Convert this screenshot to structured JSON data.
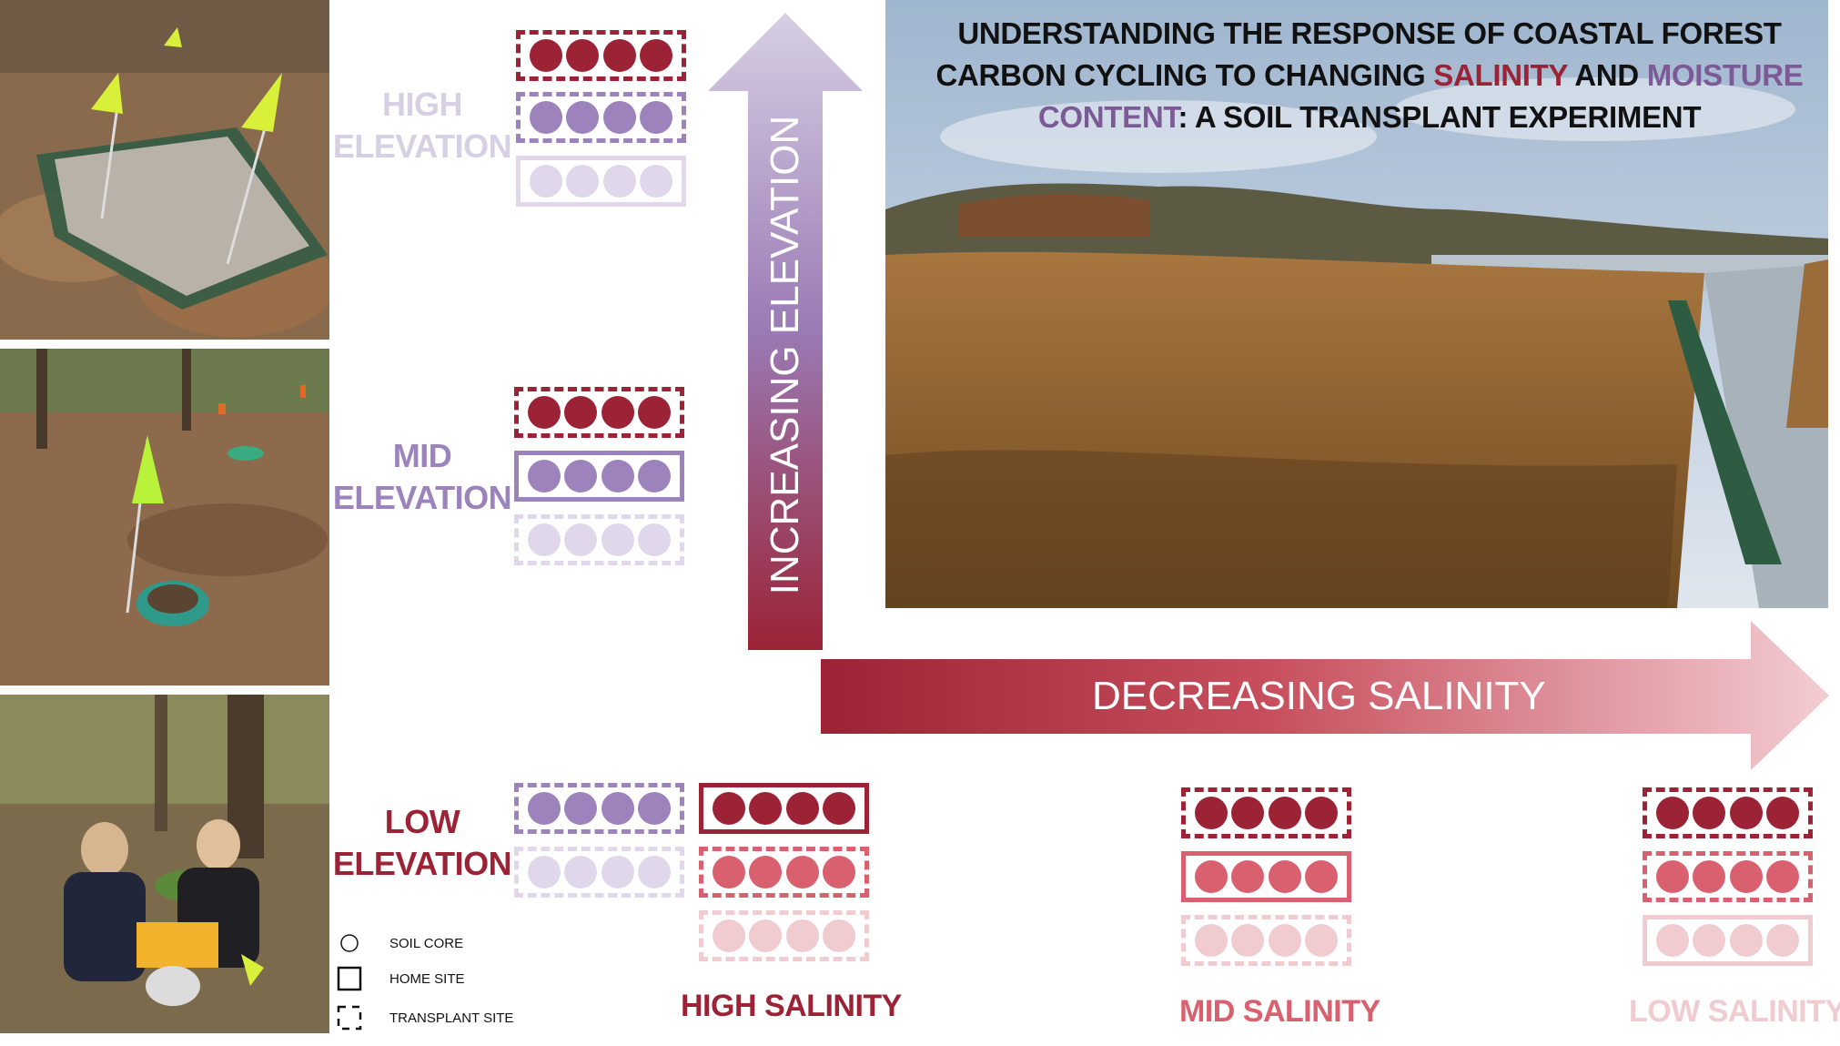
{
  "title": {
    "part1": "UNDERSTANDING THE RESPONSE OF COASTAL FOREST CARBON CYCLING TO CHANGING ",
    "salinity_word": "SALINITY",
    "part2": " AND ",
    "moisture_word": "MOISTURE CONTENT",
    "part3": ": A SOIL TRANSPLANT EXPERIMENT"
  },
  "arrows": {
    "vertical": "INCREASING ELEVATION",
    "horizontal": "DECREASING SALINITY"
  },
  "elevation_labels": [
    {
      "line1": "HIGH",
      "line2": "ELEVATION"
    },
    {
      "line1": "MID",
      "line2": "ELEVATION"
    },
    {
      "line1": "LOW",
      "line2": "ELEVATION"
    }
  ],
  "salinity_labels": [
    "HIGH SALINITY",
    "MID SALINITY",
    "LOW SALINITY"
  ],
  "legend": {
    "soil_core": "SOIL CORE",
    "home_site": "HOME SITE",
    "transplant_site": "TRANSPLANT SITE"
  },
  "colors": {
    "high_salinity": "#9b2335",
    "mid_salinity": "#d9606e",
    "low_salinity": "#f0cbd0",
    "high_elevation": "#e0d8ea",
    "mid_elevation": "#9c83bc",
    "high_elev_label": "#d7cfe3",
    "low_elev_label": "#9b2335"
  }
}
